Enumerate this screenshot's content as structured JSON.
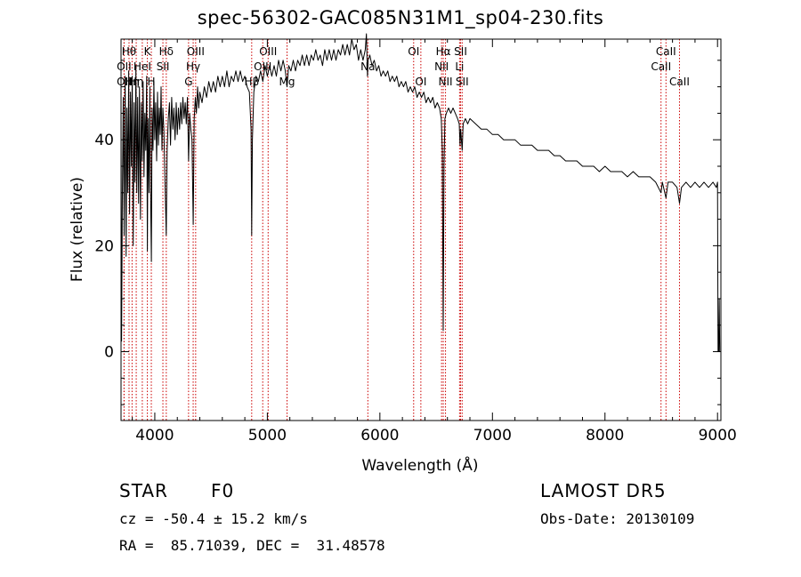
{
  "title": "spec-56302-GAC085N31M1_sp04-230.fits",
  "info": {
    "class_label": "STAR",
    "subclass": "F0",
    "survey": "LAMOST DR5",
    "cz": "cz = -50.4 ± 15.2 km/s",
    "obs_date": "Obs-Date: 20130109",
    "coords": "RA =  85.71039, DEC =  31.48578"
  },
  "chart_data": {
    "type": "line",
    "title": "spec-56302-GAC085N31M1_sp04-230.fits",
    "xlabel": "Wavelength (Å)",
    "ylabel": "Flux (relative)",
    "xlim": [
      3700,
      9030
    ],
    "ylim": [
      -13,
      59
    ],
    "xticks": [
      4000,
      5000,
      6000,
      7000,
      8000,
      9000
    ],
    "yticks": [
      0,
      20,
      40
    ],
    "grid": false,
    "series": [
      {
        "color": "#000000",
        "points": [
          [
            3700,
            45
          ],
          [
            3705,
            2
          ],
          [
            3712,
            30
          ],
          [
            3720,
            48
          ],
          [
            3728,
            22
          ],
          [
            3736,
            52
          ],
          [
            3745,
            18
          ],
          [
            3752,
            46
          ],
          [
            3760,
            30
          ],
          [
            3768,
            53
          ],
          [
            3776,
            26
          ],
          [
            3784,
            49
          ],
          [
            3792,
            35
          ],
          [
            3800,
            52
          ],
          [
            3808,
            20
          ],
          [
            3816,
            47
          ],
          [
            3824,
            32
          ],
          [
            3832,
            54
          ],
          [
            3840,
            30
          ],
          [
            3848,
            48
          ],
          [
            3856,
            28
          ],
          [
            3864,
            50
          ],
          [
            3872,
            25
          ],
          [
            3880,
            47
          ],
          [
            3888,
            36
          ],
          [
            3896,
            51
          ],
          [
            3904,
            33
          ],
          [
            3912,
            45
          ],
          [
            3920,
            38
          ],
          [
            3928,
            52
          ],
          [
            3934,
            19
          ],
          [
            3940,
            44
          ],
          [
            3948,
            30
          ],
          [
            3956,
            50
          ],
          [
            3964,
            27
          ],
          [
            3970,
            17
          ],
          [
            3976,
            46
          ],
          [
            3984,
            38
          ],
          [
            3992,
            51
          ],
          [
            4000,
            40
          ],
          [
            4008,
            47
          ],
          [
            4016,
            36
          ],
          [
            4024,
            49
          ],
          [
            4032,
            39
          ],
          [
            4040,
            46
          ],
          [
            4048,
            41
          ],
          [
            4056,
            50
          ],
          [
            4064,
            38
          ],
          [
            4072,
            46
          ],
          [
            4080,
            42
          ],
          [
            4090,
            33
          ],
          [
            4102,
            22
          ],
          [
            4110,
            38
          ],
          [
            4120,
            44
          ],
          [
            4130,
            47
          ],
          [
            4140,
            39
          ],
          [
            4150,
            48
          ],
          [
            4160,
            42
          ],
          [
            4170,
            46
          ],
          [
            4180,
            40
          ],
          [
            4190,
            47
          ],
          [
            4200,
            41
          ],
          [
            4210,
            46
          ],
          [
            4220,
            42
          ],
          [
            4230,
            47
          ],
          [
            4240,
            43
          ],
          [
            4250,
            48
          ],
          [
            4260,
            44
          ],
          [
            4270,
            47
          ],
          [
            4280,
            43
          ],
          [
            4290,
            48
          ],
          [
            4300,
            36
          ],
          [
            4310,
            45
          ],
          [
            4320,
            42
          ],
          [
            4330,
            40
          ],
          [
            4341,
            24
          ],
          [
            4350,
            44
          ],
          [
            4360,
            48
          ],
          [
            4370,
            45
          ],
          [
            4380,
            50
          ],
          [
            4390,
            46
          ],
          [
            4400,
            49
          ],
          [
            4420,
            47
          ],
          [
            4440,
            50
          ],
          [
            4460,
            48
          ],
          [
            4480,
            51
          ],
          [
            4500,
            49
          ],
          [
            4520,
            51
          ],
          [
            4540,
            49
          ],
          [
            4560,
            52
          ],
          [
            4580,
            50
          ],
          [
            4600,
            52
          ],
          [
            4620,
            50
          ],
          [
            4640,
            53
          ],
          [
            4660,
            50
          ],
          [
            4680,
            52
          ],
          [
            4700,
            51
          ],
          [
            4720,
            53
          ],
          [
            4740,
            51
          ],
          [
            4760,
            53
          ],
          [
            4780,
            51
          ],
          [
            4800,
            52
          ],
          [
            4820,
            50
          ],
          [
            4840,
            49
          ],
          [
            4855,
            42
          ],
          [
            4861,
            22
          ],
          [
            4867,
            40
          ],
          [
            4880,
            49
          ],
          [
            4900,
            52
          ],
          [
            4920,
            51
          ],
          [
            4940,
            53
          ],
          [
            4960,
            51
          ],
          [
            4980,
            54
          ],
          [
            5000,
            52
          ],
          [
            5020,
            54
          ],
          [
            5040,
            52
          ],
          [
            5060,
            54
          ],
          [
            5080,
            52
          ],
          [
            5100,
            55
          ],
          [
            5120,
            53
          ],
          [
            5140,
            55
          ],
          [
            5160,
            53
          ],
          [
            5175,
            50
          ],
          [
            5190,
            54
          ],
          [
            5210,
            53
          ],
          [
            5230,
            55
          ],
          [
            5250,
            53
          ],
          [
            5270,
            55
          ],
          [
            5290,
            54
          ],
          [
            5310,
            56
          ],
          [
            5330,
            54
          ],
          [
            5350,
            56
          ],
          [
            5370,
            54
          ],
          [
            5390,
            56
          ],
          [
            5410,
            55
          ],
          [
            5430,
            57
          ],
          [
            5450,
            55
          ],
          [
            5470,
            56
          ],
          [
            5490,
            54
          ],
          [
            5510,
            57
          ],
          [
            5530,
            55
          ],
          [
            5550,
            57
          ],
          [
            5570,
            55
          ],
          [
            5590,
            57
          ],
          [
            5610,
            55
          ],
          [
            5630,
            57
          ],
          [
            5650,
            56
          ],
          [
            5670,
            58
          ],
          [
            5690,
            56
          ],
          [
            5710,
            58
          ],
          [
            5730,
            56
          ],
          [
            5750,
            59
          ],
          [
            5770,
            57
          ],
          [
            5790,
            58
          ],
          [
            5810,
            55
          ],
          [
            5830,
            57
          ],
          [
            5850,
            55
          ],
          [
            5870,
            57
          ],
          [
            5880,
            60
          ],
          [
            5890,
            52
          ],
          [
            5896,
            55
          ],
          [
            5910,
            56
          ],
          [
            5930,
            54
          ],
          [
            5950,
            55
          ],
          [
            5970,
            53
          ],
          [
            5990,
            54
          ],
          [
            6010,
            52
          ],
          [
            6030,
            53
          ],
          [
            6050,
            52
          ],
          [
            6070,
            53
          ],
          [
            6090,
            51
          ],
          [
            6110,
            52
          ],
          [
            6130,
            51
          ],
          [
            6150,
            52
          ],
          [
            6170,
            50
          ],
          [
            6190,
            51
          ],
          [
            6210,
            50
          ],
          [
            6230,
            51
          ],
          [
            6250,
            49
          ],
          [
            6270,
            50
          ],
          [
            6290,
            49
          ],
          [
            6310,
            50
          ],
          [
            6330,
            48
          ],
          [
            6350,
            49
          ],
          [
            6370,
            48
          ],
          [
            6390,
            49
          ],
          [
            6410,
            47
          ],
          [
            6430,
            48
          ],
          [
            6450,
            47
          ],
          [
            6470,
            48
          ],
          [
            6490,
            46
          ],
          [
            6510,
            47
          ],
          [
            6530,
            46
          ],
          [
            6545,
            44
          ],
          [
            6555,
            38
          ],
          [
            6563,
            4
          ],
          [
            6570,
            35
          ],
          [
            6578,
            44
          ],
          [
            6590,
            45
          ],
          [
            6610,
            46
          ],
          [
            6630,
            45
          ],
          [
            6650,
            46
          ],
          [
            6670,
            45
          ],
          [
            6690,
            44
          ],
          [
            6705,
            43
          ],
          [
            6712,
            39
          ],
          [
            6718,
            42
          ],
          [
            6731,
            38
          ],
          [
            6740,
            43
          ],
          [
            6760,
            44
          ],
          [
            6780,
            43
          ],
          [
            6800,
            44
          ],
          [
            6850,
            43
          ],
          [
            6900,
            42
          ],
          [
            6950,
            42
          ],
          [
            7000,
            41
          ],
          [
            7050,
            41
          ],
          [
            7100,
            40
          ],
          [
            7150,
            40
          ],
          [
            7200,
            40
          ],
          [
            7250,
            39
          ],
          [
            7300,
            39
          ],
          [
            7350,
            39
          ],
          [
            7400,
            38
          ],
          [
            7450,
            38
          ],
          [
            7500,
            38
          ],
          [
            7550,
            37
          ],
          [
            7600,
            37
          ],
          [
            7650,
            36
          ],
          [
            7700,
            36
          ],
          [
            7750,
            36
          ],
          [
            7800,
            35
          ],
          [
            7850,
            35
          ],
          [
            7900,
            35
          ],
          [
            7950,
            34
          ],
          [
            8000,
            35
          ],
          [
            8050,
            34
          ],
          [
            8100,
            34
          ],
          [
            8150,
            34
          ],
          [
            8200,
            33
          ],
          [
            8250,
            34
          ],
          [
            8300,
            33
          ],
          [
            8350,
            33
          ],
          [
            8400,
            33
          ],
          [
            8450,
            32
          ],
          [
            8498,
            30
          ],
          [
            8510,
            32
          ],
          [
            8542,
            29
          ],
          [
            8560,
            32
          ],
          [
            8600,
            32
          ],
          [
            8640,
            31
          ],
          [
            8662,
            28
          ],
          [
            8680,
            31
          ],
          [
            8720,
            32
          ],
          [
            8760,
            31
          ],
          [
            8800,
            32
          ],
          [
            8840,
            31
          ],
          [
            8880,
            32
          ],
          [
            8920,
            31
          ],
          [
            8960,
            32
          ],
          [
            8990,
            31
          ],
          [
            9000,
            32
          ],
          [
            9005,
            0
          ],
          [
            9010,
            0
          ],
          [
            9015,
            10
          ],
          [
            9020,
            0
          ]
        ]
      }
    ],
    "lines": [
      {
        "wl": 3727,
        "label": "OII",
        "row": 2
      },
      {
        "wl": 3727,
        "label": "OII",
        "row": 3
      },
      {
        "wl": 3771,
        "label": "Hθ",
        "row": 1
      },
      {
        "wl": 3798,
        "label": "Hη",
        "row": 3
      },
      {
        "wl": 3835,
        "label": "Hη",
        "row": 3
      },
      {
        "wl": 3889,
        "label": "HeI",
        "row": 2
      },
      {
        "wl": 3934,
        "label": "K",
        "row": 1
      },
      {
        "wl": 3969,
        "label": "H",
        "row": 3
      },
      {
        "wl": 4072,
        "label": "SII",
        "row": 2
      },
      {
        "wl": 4102,
        "label": "Hδ",
        "row": 1
      },
      {
        "wl": 4300,
        "label": "G",
        "row": 3
      },
      {
        "wl": 4341,
        "label": "Hγ",
        "row": 2
      },
      {
        "wl": 4363,
        "label": "OIII",
        "row": 1
      },
      {
        "wl": 4861,
        "label": "Hβ",
        "row": 3
      },
      {
        "wl": 4959,
        "label": "OIII",
        "row": 2
      },
      {
        "wl": 5007,
        "label": "OIII",
        "row": 1
      },
      {
        "wl": 5175,
        "label": "Mg",
        "row": 3
      },
      {
        "wl": 5893,
        "label": "Na",
        "row": 2
      },
      {
        "wl": 6300,
        "label": "OI",
        "row": 1
      },
      {
        "wl": 6364,
        "label": "OI",
        "row": 3
      },
      {
        "wl": 6548,
        "label": "NII",
        "row": 2
      },
      {
        "wl": 6563,
        "label": "Hα",
        "row": 1
      },
      {
        "wl": 6583,
        "label": "NII",
        "row": 3
      },
      {
        "wl": 6708,
        "label": "Li",
        "row": 2
      },
      {
        "wl": 6717,
        "label": "SII",
        "row": 1
      },
      {
        "wl": 6731,
        "label": "SII",
        "row": 3
      },
      {
        "wl": 8498,
        "label": "CaII",
        "row": 2
      },
      {
        "wl": 8542,
        "label": "CaII",
        "row": 1
      },
      {
        "wl": 8662,
        "label": "CaII",
        "row": 3
      }
    ]
  },
  "style": {
    "line_marker_color": "#cc0000",
    "spectrum_color": "#000000"
  }
}
